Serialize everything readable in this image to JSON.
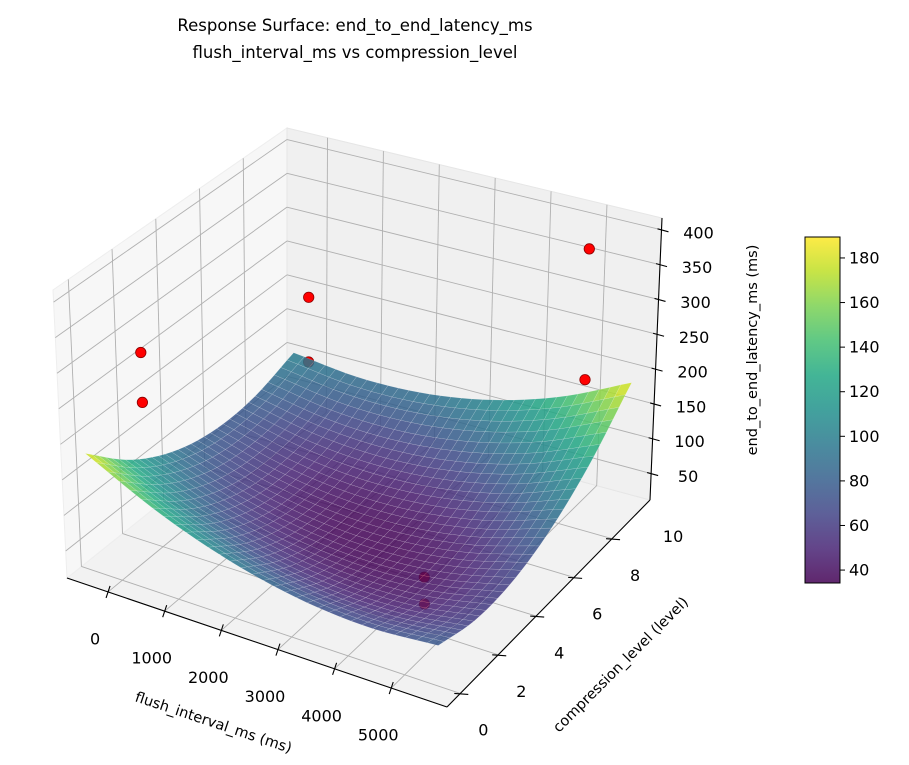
{
  "chart_data": {
    "type": "surface3d",
    "title": [
      "Response Surface: end_to_end_latency_ms",
      "flush_interval_ms vs compression_level"
    ],
    "xlabel": "flush_interval_ms (ms)",
    "ylabel": "compression_level (level)",
    "zlabel": "end_to_end_latency_ms (ms)",
    "xlim": [
      -725,
      5985
    ],
    "ylim": [
      1.3,
      12.0
    ],
    "zlim": [
      12,
      417
    ],
    "xticks": [
      "0",
      "1000",
      "2000",
      "3000",
      "4000",
      "5000"
    ],
    "yticks": [
      "0",
      "2",
      "4",
      "6",
      "8",
      "10"
    ],
    "zticks": [
      "50",
      "100",
      "150",
      "200",
      "250",
      "300",
      "350",
      "400"
    ],
    "grid": true,
    "colormap": "viridis",
    "colorbar": {
      "range": [
        34.2,
        189.4
      ],
      "ticks": [
        "40",
        "60",
        "80",
        "100",
        "120",
        "140",
        "160",
        "180"
      ],
      "placement": "right"
    },
    "surface": {
      "x": [
        -450,
        780,
        2010,
        3240,
        4470,
        5700
      ],
      "y": [
        1.7,
        3.68,
        5.66,
        7.64,
        9.62,
        11.6
      ],
      "z": [
        [
          185.3,
          131.3,
          95.9,
          78.9,
          80.3,
          100.3
        ],
        [
          135.7,
          89.5,
          61.7,
          52.5,
          61.7,
          89.3
        ],
        [
          100.2,
          61.6,
          41.6,
          40.0,
          57.0,
          92.4
        ],
        [
          78.6,
          47.8,
          35.5,
          41.6,
          66.3,
          109.4
        ],
        [
          71.0,
          47.9,
          43.3,
          57.2,
          89.6,
          140.4
        ],
        [
          77.5,
          62.1,
          65.2,
          86.8,
          126.9,
          185.5
        ]
      ]
    },
    "points": [
      {
        "x": -400,
        "y": 4.3,
        "z": 271
      },
      {
        "x": -400,
        "y": 4.3,
        "z": 200
      },
      {
        "x": -100,
        "y": 11.4,
        "z": 194
      },
      {
        "x": -100,
        "y": 11.4,
        "z": 99
      },
      {
        "x": 4925,
        "y": 11.4,
        "z": 367
      },
      {
        "x": 4925,
        "y": 11.4,
        "z": 179
      },
      {
        "x": 4563,
        "y": 4.3,
        "z": 76
      },
      {
        "x": 4563,
        "y": 4.3,
        "z": 39
      }
    ],
    "point_color": "#ff0000",
    "point_edge_color": "#8b0000"
  }
}
